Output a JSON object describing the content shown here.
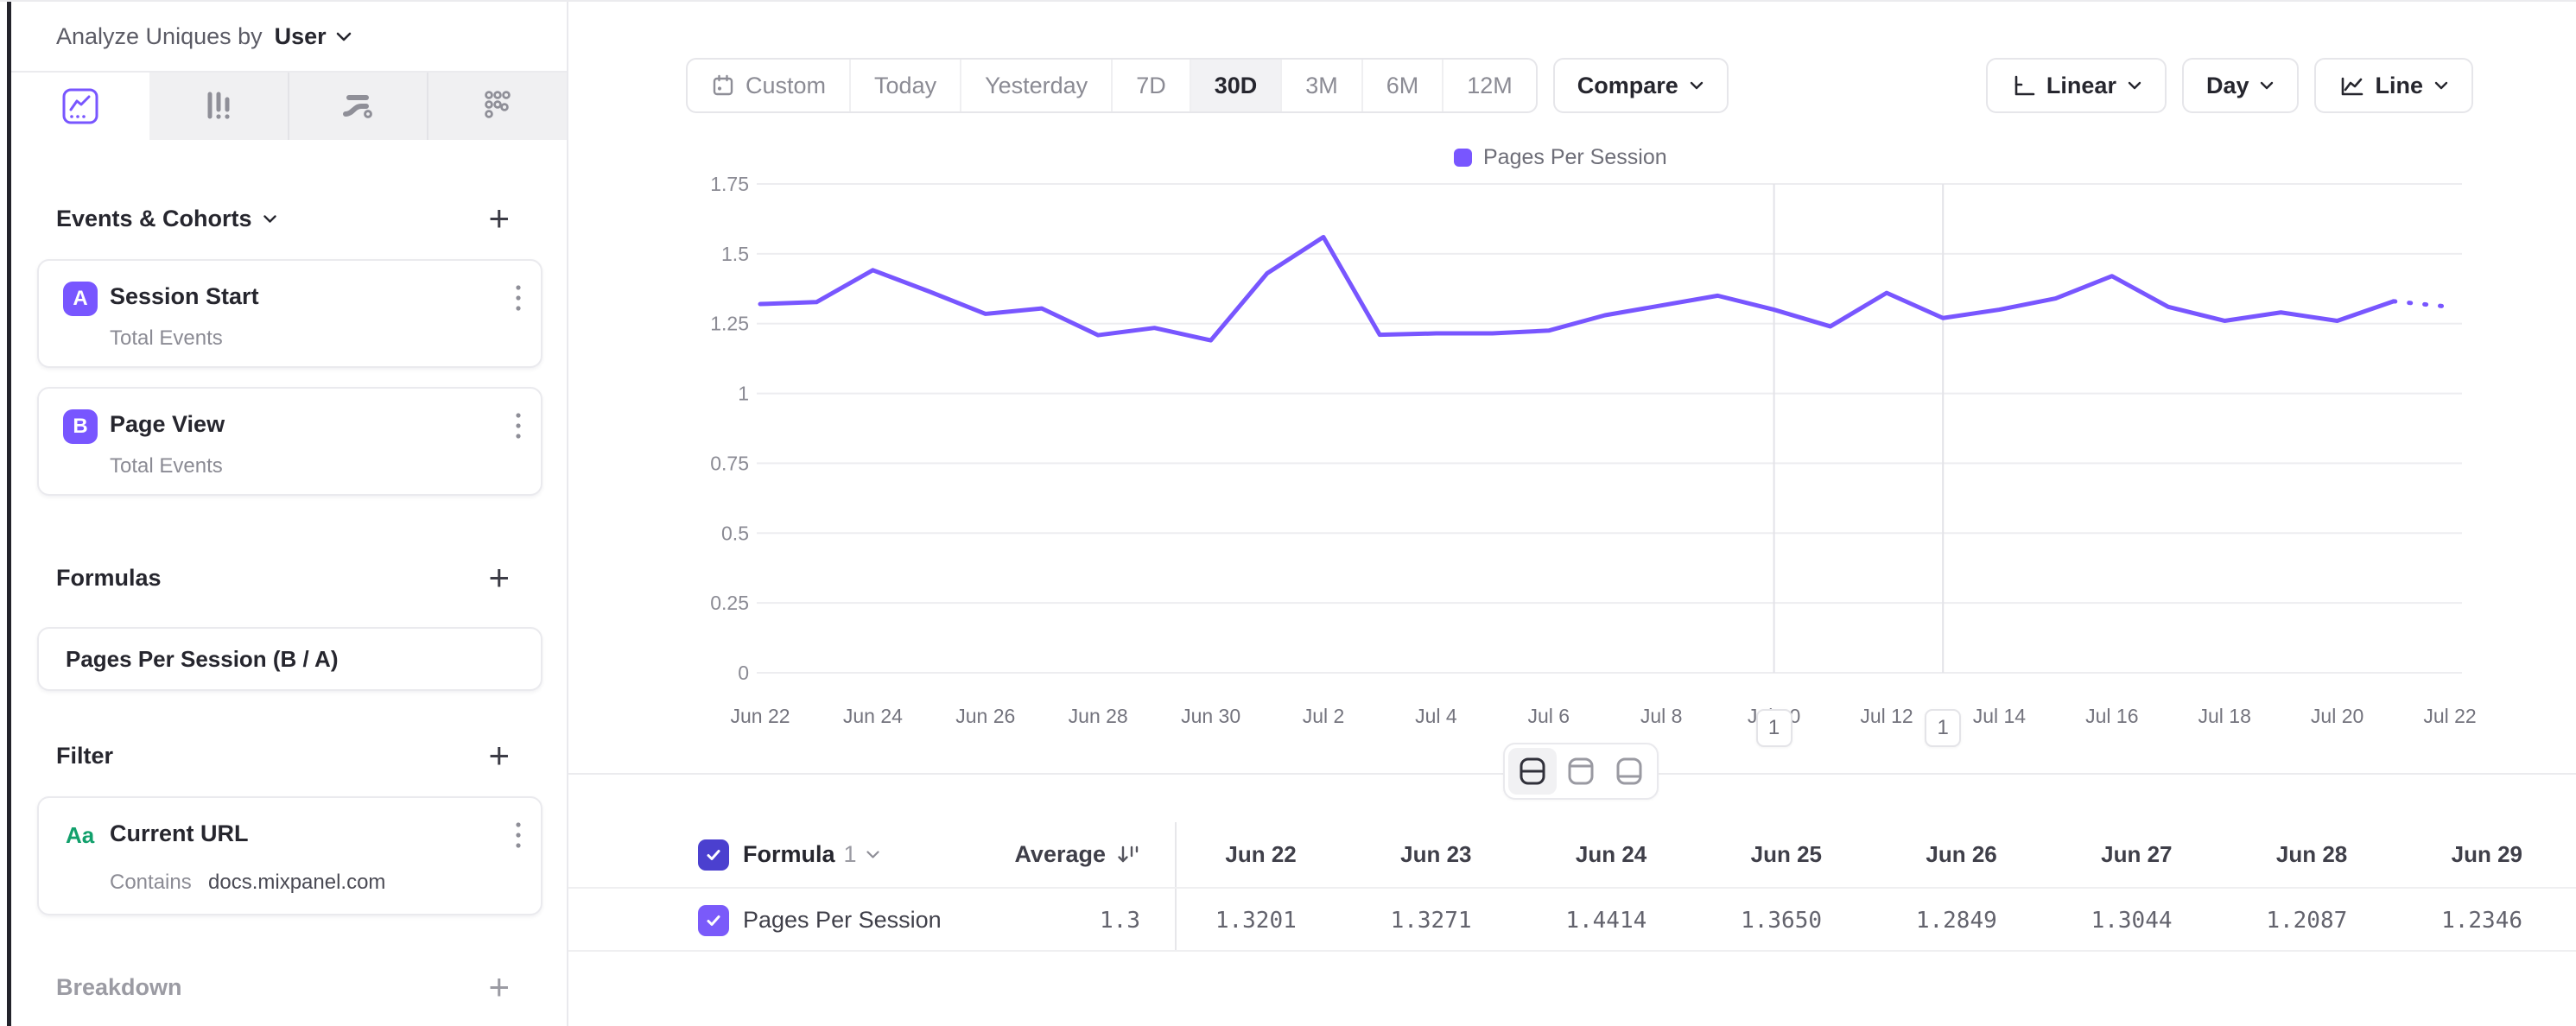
{
  "sidebar": {
    "analyze_label": "Analyze Uniques by",
    "analyze_value": "User",
    "tabs": [
      {
        "icon": "insights-line-icon",
        "active": true
      },
      {
        "icon": "bar-chart-icon",
        "active": false
      },
      {
        "icon": "flow-icon",
        "active": false
      },
      {
        "icon": "retention-grid-icon",
        "active": false
      }
    ],
    "events_section": {
      "title": "Events & Cohorts"
    },
    "events": [
      {
        "badge": "A",
        "name": "Session Start",
        "metric": "Total Events"
      },
      {
        "badge": "B",
        "name": "Page View",
        "metric": "Total Events"
      }
    ],
    "formulas_section": {
      "title": "Formulas"
    },
    "formulas": [
      {
        "name": "Pages Per Session (B / A)"
      }
    ],
    "filter_section": {
      "title": "Filter"
    },
    "filters": [
      {
        "type_badge": "Aa",
        "name": "Current URL",
        "operator": "Contains",
        "value": "docs.mixpanel.com"
      }
    ],
    "breakdown_section": {
      "title": "Breakdown"
    }
  },
  "toolbar": {
    "ranges": [
      "Custom",
      "Today",
      "Yesterday",
      "7D",
      "30D",
      "3M",
      "6M",
      "12M"
    ],
    "active_range": "30D",
    "compare_label": "Compare",
    "scale_label": "Linear",
    "interval_label": "Day",
    "chart_type_label": "Line"
  },
  "chart_data": {
    "type": "line",
    "legend": [
      "Pages Per Session"
    ],
    "legend_position": "top",
    "x": [
      "Jun 22",
      "Jun 23",
      "Jun 24",
      "Jun 25",
      "Jun 26",
      "Jun 27",
      "Jun 28",
      "Jun 29",
      "Jun 30",
      "Jul 1",
      "Jul 2",
      "Jul 3",
      "Jul 4",
      "Jul 5",
      "Jul 6",
      "Jul 7",
      "Jul 8",
      "Jul 9",
      "Jul 10",
      "Jul 11",
      "Jul 12",
      "Jul 13",
      "Jul 14",
      "Jul 15",
      "Jul 16",
      "Jul 17",
      "Jul 18",
      "Jul 19",
      "Jul 20",
      "Jul 21",
      "Jul 22"
    ],
    "x_tick_every": 2,
    "series": [
      {
        "name": "Pages Per Session",
        "color": "#7856ff",
        "values": [
          1.3201,
          1.3271,
          1.4414,
          1.365,
          1.2849,
          1.3044,
          1.2087,
          1.2346,
          1.19,
          1.43,
          1.56,
          1.21,
          1.215,
          1.215,
          1.225,
          1.28,
          1.315,
          1.35,
          1.3,
          1.24,
          1.36,
          1.27,
          1.3,
          1.34,
          1.42,
          1.31,
          1.26,
          1.29,
          1.26,
          1.33,
          1.31
        ]
      }
    ],
    "incomplete_last_points": 1,
    "ylim": [
      0,
      1.75
    ],
    "yticks": [
      0,
      0.25,
      0.5,
      0.75,
      1,
      1.25,
      1.5,
      1.75
    ],
    "grid": "horizontal",
    "annotations": [
      {
        "x": "Jul 10",
        "label": "1"
      },
      {
        "x": "Jul 13",
        "label": "1"
      }
    ]
  },
  "view_toggles": {
    "options": [
      "split",
      "chart",
      "table"
    ],
    "active": "split"
  },
  "table": {
    "formula_label": "Formula",
    "formula_index": "1",
    "average_label": "Average",
    "columns": [
      "Jun 22",
      "Jun 23",
      "Jun 24",
      "Jun 25",
      "Jun 26",
      "Jun 27",
      "Jun 28",
      "Jun 29"
    ],
    "rows": [
      {
        "name": "Pages Per Session",
        "average": "1.3",
        "checked": true,
        "values": [
          "1.3201",
          "1.3271",
          "1.4414",
          "1.3650",
          "1.2849",
          "1.3044",
          "1.2087",
          "1.2346"
        ]
      }
    ]
  }
}
